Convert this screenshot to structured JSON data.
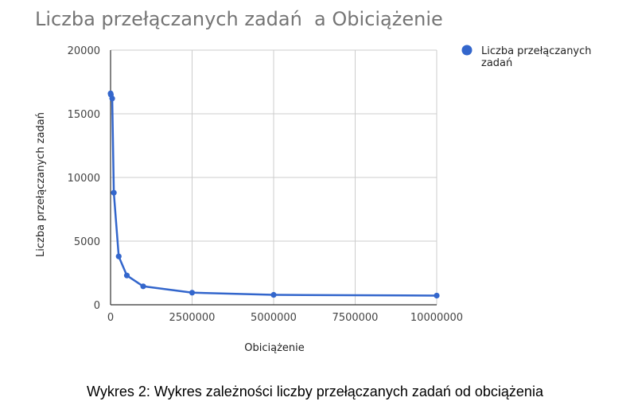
{
  "chart_data": {
    "type": "line",
    "title": "Liczba przełączanych zadań  a Obiciążenie",
    "xlabel": "Obiciążenie",
    "ylabel": "Liczba przełączanych zadań",
    "xlim": [
      0,
      10000000
    ],
    "ylim": [
      0,
      20000
    ],
    "x_ticks": [
      "0",
      "2500000",
      "5000000",
      "7500000",
      "10000000"
    ],
    "y_ticks": [
      "0",
      "5000",
      "10000",
      "15000",
      "20000"
    ],
    "grid": true,
    "legend_position": "top-right",
    "series": [
      {
        "name": "Liczba przełączanych zadań",
        "color": "#3366cc",
        "x": [
          1000,
          10000,
          50000,
          100000,
          250000,
          500000,
          1000000,
          2500000,
          5000000,
          10000000
        ],
        "y": [
          16600,
          16500,
          16200,
          8800,
          3800,
          2300,
          1450,
          950,
          780,
          720
        ]
      }
    ]
  },
  "caption": "Wykres 2: Wykres zależności liczby przełączanych zadań od obciążenia"
}
